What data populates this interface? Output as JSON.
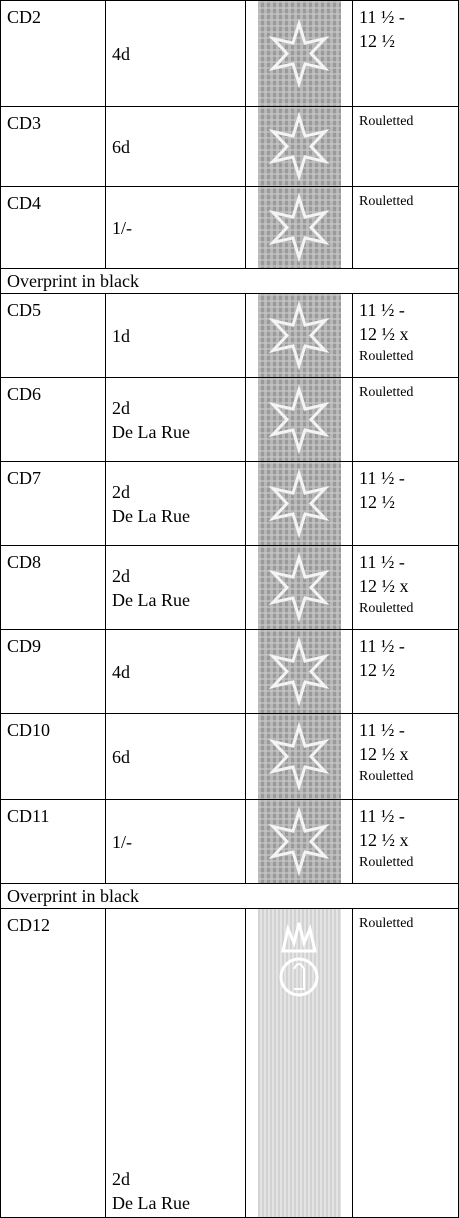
{
  "rows": [
    {
      "id": "CD2",
      "value": [
        "4d"
      ],
      "perf": [
        "11 ½ -",
        "12 ½"
      ]
    },
    {
      "id": "CD3",
      "value": [
        "6d"
      ],
      "note": "Rouletted"
    },
    {
      "id": "CD4",
      "value": [
        "1/-"
      ],
      "note": "Rouletted"
    },
    {
      "section": "Overprint in black"
    },
    {
      "id": "CD5",
      "value": [
        "1d"
      ],
      "perf": [
        "11 ½ -",
        "12 ½ x"
      ],
      "note": "Rouletted"
    },
    {
      "id": "CD6",
      "value": [
        "2d",
        "De La Rue"
      ],
      "note": "Rouletted"
    },
    {
      "id": "CD7",
      "value": [
        "2d",
        "De La Rue"
      ],
      "perf": [
        "11 ½ -",
        "12 ½"
      ]
    },
    {
      "id": "CD8",
      "value": [
        "2d",
        "De La Rue"
      ],
      "perf": [
        "11 ½ -",
        "12 ½ x"
      ],
      "note": "Rouletted"
    },
    {
      "id": "CD9",
      "value": [
        "4d"
      ],
      "perf": [
        "11 ½ -",
        "12 ½"
      ]
    },
    {
      "id": "CD10",
      "value": [
        "6d"
      ],
      "perf": [
        "11 ½ -",
        "12 ½ x"
      ],
      "note": "Rouletted"
    },
    {
      "id": "CD11",
      "value": [
        "1/-"
      ],
      "perf": [
        "11 ½ -",
        "12 ½ x"
      ],
      "note": "Rouletted"
    },
    {
      "section": "Overprint in black"
    },
    {
      "id": "CD12",
      "value": [
        "2d",
        "De La Rue"
      ],
      "note": "Rouletted"
    }
  ]
}
